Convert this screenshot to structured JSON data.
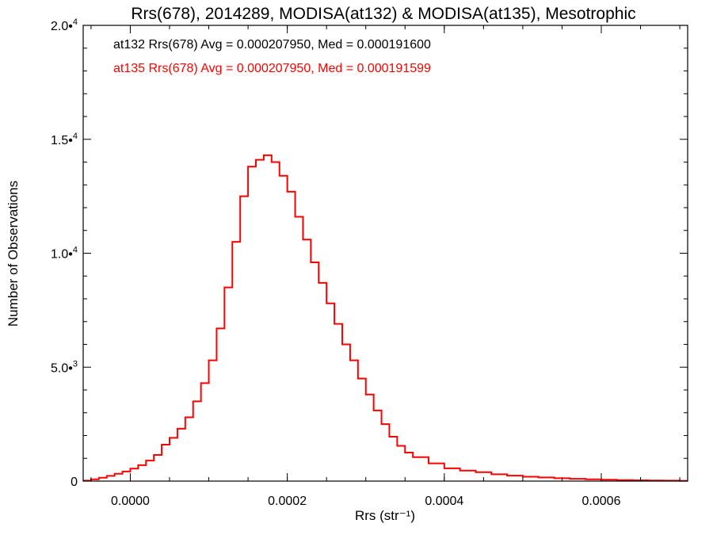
{
  "chart_data": {
    "type": "line",
    "title": "Rrs(678), 2014289, MODISA(at132) & MODISA(at135), Mesotrophic",
    "xlabel": "Rrs (str⁻¹)",
    "ylabel": "Number of Observations",
    "xlim": [
      -6e-05,
      0.00071
    ],
    "ylim": [
      0,
      20000
    ],
    "x_ticks": [
      {
        "value": 0.0,
        "label": "0.0000"
      },
      {
        "value": 0.0002,
        "label": "0.0002"
      },
      {
        "value": 0.0004,
        "label": "0.0004"
      },
      {
        "value": 0.0006,
        "label": "0.0006"
      }
    ],
    "y_ticks": [
      {
        "value": 0,
        "label": "0"
      },
      {
        "value": 5000,
        "label": "5.0•",
        "exp": "3"
      },
      {
        "value": 10000,
        "label": "1.0•",
        "exp": "4"
      },
      {
        "value": 15000,
        "label": "1.5•",
        "exp": "4"
      },
      {
        "value": 20000,
        "label": "2.0•",
        "exp": "4"
      }
    ],
    "legend_entries": [
      {
        "text": "at132 Rrs(678) Avg = 0.000207950, Med = 0.000191600",
        "color": "#000000"
      },
      {
        "text": "at135 Rrs(678) Avg = 0.000207950, Med = 0.000191599",
        "color": "#ff0000"
      }
    ],
    "legend_placement": "top-left",
    "series": [
      {
        "color": "#ff0000",
        "style": "step",
        "x": [
          -6e-05,
          -5e-05,
          -4e-05,
          -3e-05,
          -2e-05,
          -1e-05,
          0.0,
          1e-05,
          2e-05,
          3e-05,
          4e-05,
          5e-05,
          6e-05,
          7e-05,
          8e-05,
          9e-05,
          0.0001,
          0.00011,
          0.00012,
          0.00013,
          0.00014,
          0.00015,
          0.00016,
          0.00017,
          0.00018,
          0.00019,
          0.0002,
          0.00021,
          0.00022,
          0.00023,
          0.00024,
          0.00025,
          0.00026,
          0.00027,
          0.00028,
          0.00029,
          0.0003,
          0.00031,
          0.00032,
          0.00033,
          0.00034,
          0.00035,
          0.00036,
          0.00038,
          0.0004,
          0.00042,
          0.00044,
          0.00046,
          0.00048,
          0.0005,
          0.00052,
          0.00054,
          0.00056,
          0.00058,
          0.0006,
          0.00062,
          0.00064,
          0.00066,
          0.00068,
          0.0007
        ],
        "y": [
          20,
          80,
          150,
          230,
          320,
          420,
          550,
          700,
          900,
          1150,
          1600,
          1900,
          2300,
          2800,
          3500,
          4300,
          5300,
          6700,
          8500,
          10500,
          12500,
          13800,
          14100,
          14300,
          14000,
          13400,
          12700,
          11600,
          10600,
          9600,
          8700,
          7800,
          6900,
          6000,
          5300,
          4500,
          3800,
          3100,
          2500,
          1950,
          1550,
          1250,
          1050,
          780,
          560,
          460,
          390,
          300,
          240,
          190,
          160,
          125,
          100,
          80,
          60,
          45,
          35,
          25,
          20,
          15
        ]
      }
    ]
  }
}
